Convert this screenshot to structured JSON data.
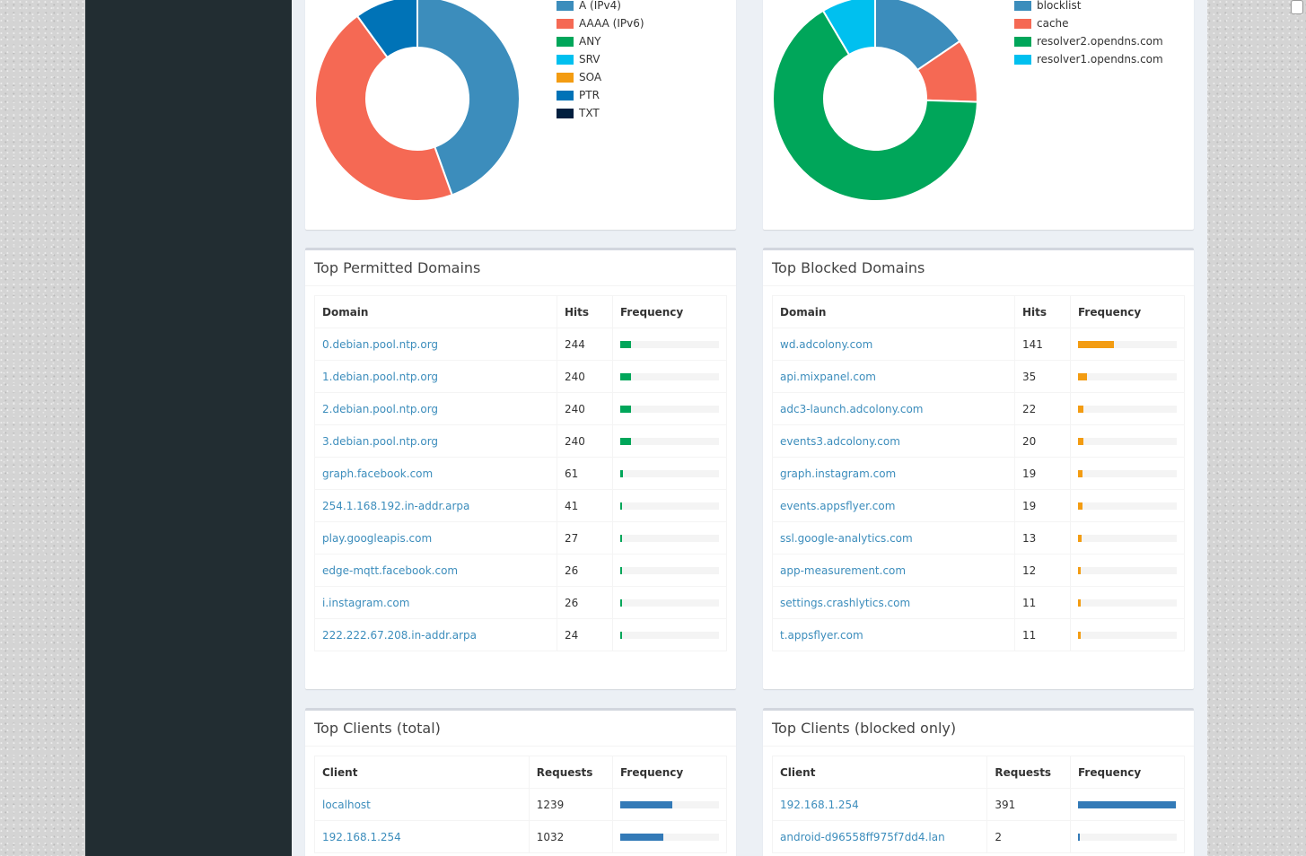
{
  "query_types_chart": {
    "legend": [
      {
        "label": "A (IPv4)",
        "color": "#3c8dbc",
        "value": 44.5
      },
      {
        "label": "AAAA (IPv6)",
        "color": "#f56954",
        "value": 45.5
      },
      {
        "label": "ANY",
        "color": "#00a65a",
        "value": 0
      },
      {
        "label": "SRV",
        "color": "#00c0ef",
        "value": 0
      },
      {
        "label": "SOA",
        "color": "#f39c12",
        "value": 0
      },
      {
        "label": "PTR",
        "color": "#0073b7",
        "value": 10
      },
      {
        "label": "TXT",
        "color": "#001f3f",
        "value": 0
      }
    ]
  },
  "forward_destinations_chart": {
    "legend": [
      {
        "label": "blocklist",
        "color": "#3c8dbc",
        "value": 15.5
      },
      {
        "label": "cache",
        "color": "#f56954",
        "value": 10
      },
      {
        "label": "resolver2.opendns.com",
        "color": "#00a65a",
        "value": 66
      },
      {
        "label": "resolver1.opendns.com",
        "color": "#00c0ef",
        "value": 8.5
      }
    ]
  },
  "top_permitted": {
    "title": "Top Permitted Domains",
    "columns": [
      "Domain",
      "Hits",
      "Frequency"
    ],
    "bar_color": "#00a65a",
    "rows": [
      {
        "domain": "0.debian.pool.ntp.org",
        "hits": "244",
        "freq": 0.11
      },
      {
        "domain": "1.debian.pool.ntp.org",
        "hits": "240",
        "freq": 0.11
      },
      {
        "domain": "2.debian.pool.ntp.org",
        "hits": "240",
        "freq": 0.11
      },
      {
        "domain": "3.debian.pool.ntp.org",
        "hits": "240",
        "freq": 0.11
      },
      {
        "domain": "graph.facebook.com",
        "hits": "61",
        "freq": 0.027
      },
      {
        "domain": "254.1.168.192.in-addr.arpa",
        "hits": "41",
        "freq": 0.018
      },
      {
        "domain": "play.googleapis.com",
        "hits": "27",
        "freq": 0.012
      },
      {
        "domain": "edge-mqtt.facebook.com",
        "hits": "26",
        "freq": 0.012
      },
      {
        "domain": "i.instagram.com",
        "hits": "26",
        "freq": 0.012
      },
      {
        "domain": "222.222.67.208.in-addr.arpa",
        "hits": "24",
        "freq": 0.011
      }
    ]
  },
  "top_blocked": {
    "title": "Top Blocked Domains",
    "columns": [
      "Domain",
      "Hits",
      "Frequency"
    ],
    "bar_color": "#f39c12",
    "rows": [
      {
        "domain": "wd.adcolony.com",
        "hits": "141",
        "freq": 0.36
      },
      {
        "domain": "api.mixpanel.com",
        "hits": "35",
        "freq": 0.09
      },
      {
        "domain": "adc3-launch.adcolony.com",
        "hits": "22",
        "freq": 0.056
      },
      {
        "domain": "events3.adcolony.com",
        "hits": "20",
        "freq": 0.051
      },
      {
        "domain": "graph.instagram.com",
        "hits": "19",
        "freq": 0.049
      },
      {
        "domain": "events.appsflyer.com",
        "hits": "19",
        "freq": 0.049
      },
      {
        "domain": "ssl.google-analytics.com",
        "hits": "13",
        "freq": 0.033
      },
      {
        "domain": "app-measurement.com",
        "hits": "12",
        "freq": 0.031
      },
      {
        "domain": "settings.crashlytics.com",
        "hits": "11",
        "freq": 0.028
      },
      {
        "domain": "t.appsflyer.com",
        "hits": "11",
        "freq": 0.028
      }
    ]
  },
  "top_clients_total": {
    "title": "Top Clients (total)",
    "columns": [
      "Client",
      "Requests",
      "Frequency"
    ],
    "bar_color": "#337ab7",
    "rows": [
      {
        "client": "localhost",
        "requests": "1239",
        "freq": 0.53
      },
      {
        "client": "192.168.1.254",
        "requests": "1032",
        "freq": 0.44
      }
    ]
  },
  "top_clients_blocked": {
    "title": "Top Clients (blocked only)",
    "columns": [
      "Client",
      "Requests",
      "Frequency"
    ],
    "bar_color": "#337ab7",
    "rows": [
      {
        "client": "192.168.1.254",
        "requests": "391",
        "freq": 0.99
      },
      {
        "client": "android-d96558ff975f7dd4.lan",
        "requests": "2",
        "freq": 0.005
      }
    ]
  }
}
